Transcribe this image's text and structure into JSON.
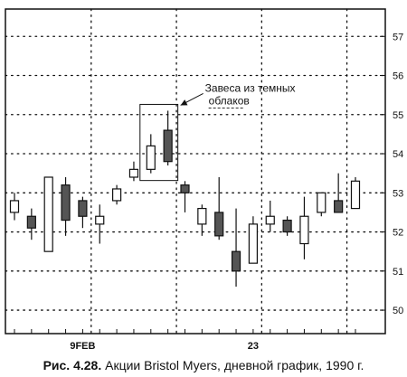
{
  "caption": {
    "number": "Рис. 4.28.",
    "text": "Акции Bristol Myers, дневной график, 1990 г."
  },
  "colors": {
    "ink": "#111111",
    "bearish_fill": "#555555",
    "bullish_fill": "#ffffff"
  },
  "chart_data": {
    "type": "candlestick",
    "title": "",
    "xlabel": "",
    "ylabel": "",
    "ylim": [
      49.4,
      57.7
    ],
    "yticks": [
      50,
      51,
      52,
      53,
      54,
      55,
      56,
      57
    ],
    "xtick_labels": [
      {
        "label": "9FEB",
        "index": 4
      },
      {
        "label": "23",
        "index": 14
      }
    ],
    "grid": true,
    "annotation": {
      "text_line1": "Завеса из темных",
      "text_line2": "облаков",
      "target_indices": [
        8,
        9
      ]
    },
    "candles": [
      {
        "o": 52.5,
        "h": 53.0,
        "l": 52.3,
        "c": 52.8
      },
      {
        "o": 52.4,
        "h": 52.6,
        "l": 51.8,
        "c": 52.1
      },
      {
        "o": 51.5,
        "h": 53.4,
        "l": 51.5,
        "c": 53.4
      },
      {
        "o": 53.2,
        "h": 53.4,
        "l": 51.9,
        "c": 52.3
      },
      {
        "o": 52.8,
        "h": 52.9,
        "l": 52.1,
        "c": 52.4
      },
      {
        "o": 52.2,
        "h": 52.7,
        "l": 51.7,
        "c": 52.4
      },
      {
        "o": 52.8,
        "h": 53.2,
        "l": 52.7,
        "c": 53.1
      },
      {
        "o": 53.4,
        "h": 53.8,
        "l": 53.3,
        "c": 53.6
      },
      {
        "o": 53.6,
        "h": 54.5,
        "l": 53.5,
        "c": 54.2
      },
      {
        "o": 54.6,
        "h": 55.1,
        "l": 53.7,
        "c": 53.8
      },
      {
        "o": 53.2,
        "h": 53.3,
        "l": 52.5,
        "c": 53.0
      },
      {
        "o": 52.2,
        "h": 52.7,
        "l": 51.9,
        "c": 52.6
      },
      {
        "o": 52.5,
        "h": 53.4,
        "l": 51.8,
        "c": 51.9
      },
      {
        "o": 51.5,
        "h": 52.6,
        "l": 50.6,
        "c": 51.0
      },
      {
        "o": 51.2,
        "h": 52.4,
        "l": 51.2,
        "c": 52.2
      },
      {
        "o": 52.2,
        "h": 52.8,
        "l": 52.0,
        "c": 52.4
      },
      {
        "o": 52.3,
        "h": 52.4,
        "l": 51.9,
        "c": 52.0
      },
      {
        "o": 51.7,
        "h": 52.9,
        "l": 51.3,
        "c": 52.4
      },
      {
        "o": 52.5,
        "h": 53.0,
        "l": 52.4,
        "c": 53.0
      },
      {
        "o": 52.8,
        "h": 53.5,
        "l": 52.5,
        "c": 52.5
      },
      {
        "o": 52.6,
        "h": 53.4,
        "l": 52.6,
        "c": 53.3
      }
    ]
  }
}
